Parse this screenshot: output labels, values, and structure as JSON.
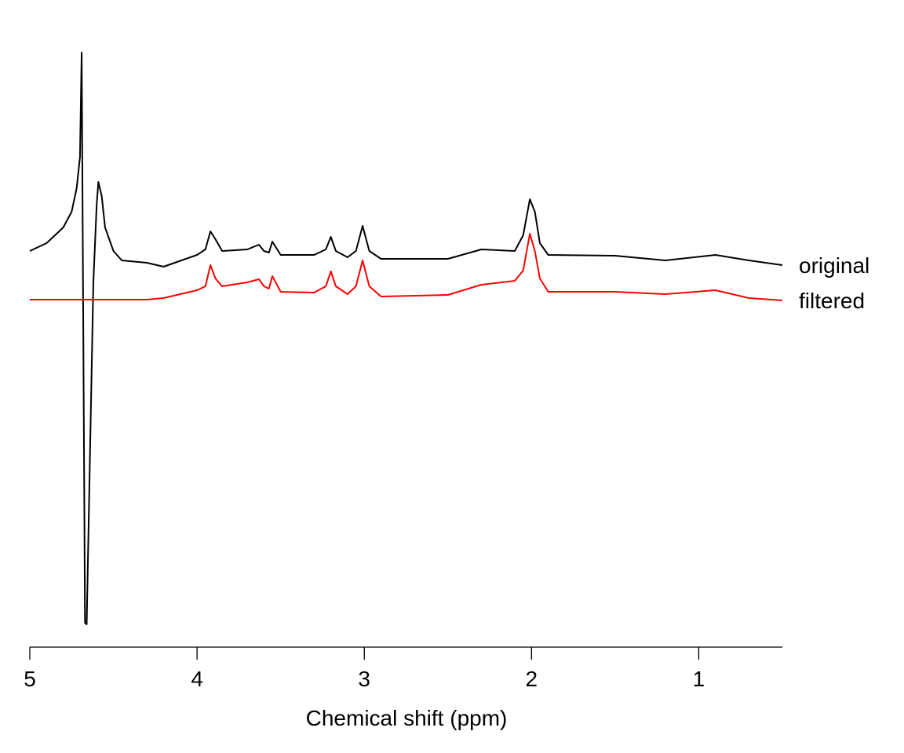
{
  "chart_data": {
    "type": "line",
    "x_label": "Chemical shift (ppm)",
    "x": [
      5.0,
      4.9,
      4.8,
      4.75,
      4.72,
      4.7,
      4.69,
      4.67,
      4.66,
      4.62,
      4.6,
      4.59,
      4.57,
      4.55,
      4.5,
      4.45,
      4.3,
      4.2,
      4.0,
      3.95,
      3.92,
      3.89,
      3.85,
      3.7,
      3.63,
      3.6,
      3.57,
      3.55,
      3.5,
      3.3,
      3.23,
      3.2,
      3.17,
      3.1,
      3.05,
      3.01,
      2.97,
      2.9,
      2.5,
      2.3,
      2.1,
      2.05,
      2.01,
      1.98,
      1.95,
      1.9,
      1.5,
      1.2,
      0.9,
      0.7,
      0.5
    ],
    "series": [
      {
        "name": "original",
        "color": "#000000",
        "values": [
          50,
          51,
          53,
          55,
          58,
          62,
          75.3,
          2.6,
          2.4,
          46,
          56,
          58.8,
          57,
          53,
          50,
          48.8,
          48.5,
          48,
          49.5,
          50.2,
          52.5,
          51.5,
          50,
          50.2,
          50.8,
          50,
          49.8,
          51.2,
          49.5,
          49.5,
          50.2,
          51.8,
          50,
          49.2,
          50,
          53.2,
          50,
          49,
          49,
          50.2,
          50,
          52,
          56.6,
          55,
          51,
          49.5,
          49.4,
          48.8,
          49.5,
          48.8,
          48.2
        ]
      },
      {
        "name": "filtered",
        "color": "#ff0000",
        "values": [
          43.8,
          43.8,
          43.8,
          43.8,
          43.8,
          43.8,
          43.8,
          43.8,
          43.8,
          43.8,
          43.8,
          43.8,
          43.8,
          43.8,
          43.8,
          43.8,
          43.8,
          44,
          45,
          45.5,
          48.2,
          46.5,
          45.5,
          46,
          46.4,
          45.5,
          45.2,
          46.8,
          44.8,
          44.7,
          45.5,
          47.4,
          45.5,
          44.5,
          45.5,
          48.8,
          45.5,
          44.2,
          44.4,
          45.7,
          46.2,
          47.5,
          52.2,
          50,
          46.5,
          44.8,
          44.8,
          44.5,
          45,
          44,
          43.7
        ]
      }
    ],
    "xlim": [
      5,
      0.5
    ],
    "xticks": [
      5,
      4,
      3,
      2,
      1
    ],
    "ylim": [
      0,
      76
    ]
  }
}
